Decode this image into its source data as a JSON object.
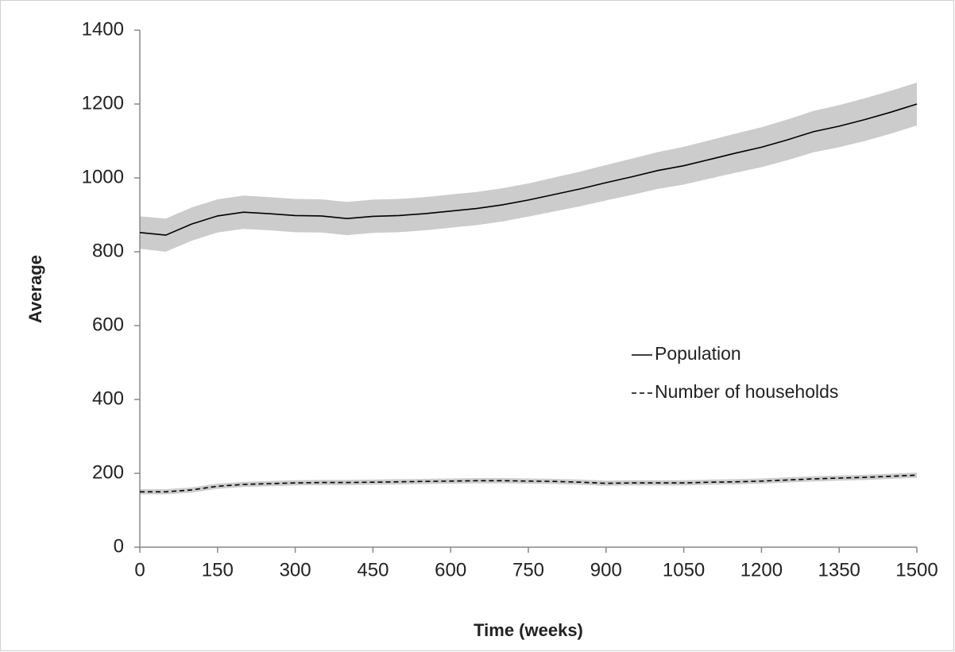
{
  "chart_data": {
    "type": "line",
    "x_label": "Time (weeks)",
    "y_label": "Average",
    "x": [
      0,
      50,
      100,
      150,
      200,
      250,
      300,
      350,
      400,
      450,
      500,
      550,
      600,
      650,
      700,
      750,
      800,
      850,
      900,
      950,
      1000,
      1050,
      1100,
      1150,
      1200,
      1250,
      1300,
      1350,
      1400,
      1450,
      1500
    ],
    "series": [
      {
        "name": "Population",
        "color": "#000000",
        "dashed": false,
        "band_color": "#cccccc",
        "values": [
          852,
          845,
          875,
          897,
          907,
          903,
          898,
          897,
          890,
          896,
          898,
          903,
          910,
          917,
          927,
          940,
          955,
          970,
          987,
          1003,
          1020,
          1033,
          1050,
          1067,
          1083,
          1103,
          1125,
          1140,
          1158,
          1178,
          1200
        ],
        "lower": [
          808,
          800,
          830,
          852,
          862,
          858,
          853,
          852,
          845,
          851,
          853,
          858,
          865,
          872,
          882,
          895,
          909,
          923,
          939,
          954,
          970,
          982,
          998,
          1014,
          1029,
          1048,
          1069,
          1083,
          1100,
          1120,
          1142
        ],
        "upper": [
          896,
          890,
          920,
          942,
          952,
          948,
          943,
          942,
          935,
          941,
          943,
          948,
          955,
          962,
          972,
          985,
          1001,
          1017,
          1035,
          1052,
          1070,
          1084,
          1102,
          1120,
          1137,
          1158,
          1181,
          1197,
          1216,
          1236,
          1258
        ]
      },
      {
        "name": "Number of households",
        "color": "#000000",
        "dashed": true,
        "band_color": "#cccccc",
        "values": [
          150,
          150,
          155,
          165,
          170,
          172,
          174,
          175,
          175,
          176,
          177,
          178,
          179,
          180,
          180,
          179,
          178,
          176,
          173,
          174,
          174,
          174,
          176,
          177,
          179,
          182,
          185,
          187,
          189,
          192,
          195
        ],
        "lower": [
          143,
          143,
          148,
          158,
          163,
          165,
          167,
          168,
          168,
          169,
          170,
          171,
          172,
          173,
          173,
          172,
          171,
          169,
          166,
          167,
          167,
          167,
          169,
          170,
          172,
          175,
          178,
          180,
          182,
          185,
          188
        ],
        "upper": [
          157,
          157,
          162,
          172,
          177,
          179,
          181,
          182,
          182,
          183,
          184,
          185,
          186,
          187,
          187,
          186,
          185,
          183,
          180,
          181,
          181,
          181,
          183,
          184,
          186,
          189,
          192,
          194,
          196,
          199,
          202
        ]
      }
    ],
    "xlim": [
      0,
      1500
    ],
    "xticks": [
      0,
      150,
      300,
      450,
      600,
      750,
      900,
      1050,
      1200,
      1350,
      1500
    ],
    "ylim": [
      0,
      1400
    ],
    "yticks": [
      0,
      200,
      400,
      600,
      800,
      1000,
      1200,
      1400
    ],
    "grid": false
  }
}
